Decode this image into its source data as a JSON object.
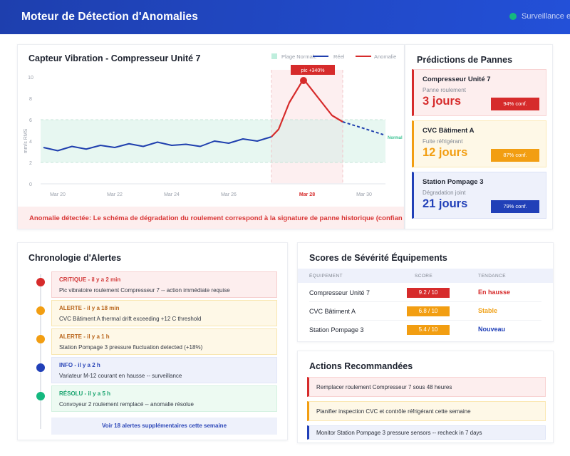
{
  "header": {
    "title": "Moteur de Détection d'Anomalies",
    "status_label": "Surveillance e",
    "status_color": "#14b87f"
  },
  "chart_card": {
    "title": "Capteur Vibration - Compresseur Unité 7",
    "legend": [
      {
        "label": "Plage Normale",
        "color": "#bfeedd",
        "kind": "box"
      },
      {
        "label": "Réel",
        "color": "#1f3fae",
        "kind": "line"
      },
      {
        "label": "Anomalie",
        "color": "#d62b2b",
        "kind": "line"
      }
    ],
    "peak_label": "pic +340%",
    "band_label": "Normal",
    "banner": "Anomalie détectée: Le schéma de dégradation du roulement correspond à la signature de panne historique (confian"
  },
  "chart_data": {
    "type": "line",
    "title": "Capteur Vibration - Compresseur Unité 7",
    "xlabel": "",
    "ylabel": "mm/s RMS",
    "ylim": [
      0,
      10
    ],
    "yticks": [
      0,
      2,
      4,
      6,
      8,
      10
    ],
    "xticks": [
      "Mar 20",
      "Mar 22",
      "Mar 24",
      "Mar 26",
      "Mar 28",
      "Mar 30"
    ],
    "highlight_xtick": "Mar 28",
    "normal_range": [
      2,
      6
    ],
    "grid": false,
    "legend_position": "top-right",
    "series": [
      {
        "name": "Réel",
        "color": "#1f3fae",
        "style": "solid",
        "values": [
          3.4,
          3.1,
          3.5,
          3.25,
          3.6,
          3.4,
          3.75,
          3.5,
          3.9,
          3.6,
          3.7,
          3.5,
          4.0,
          3.8,
          4.2,
          4.0,
          4.4
        ]
      },
      {
        "name": "Anomalie",
        "color": "#d62b2b",
        "style": "solid",
        "values": [
          4.4,
          5.1,
          7.6,
          9.8,
          8.1,
          6.4,
          5.8
        ]
      },
      {
        "name": "Prévision",
        "color": "#1f3fae",
        "style": "dashed",
        "values": [
          5.8,
          5.2,
          4.6
        ]
      }
    ],
    "annotations": [
      {
        "text": "pic +340%",
        "at_value": 9.8
      },
      {
        "text": "Normal",
        "at_value": 4.5
      }
    ]
  },
  "predictions": {
    "title": "Prédictions de Pannes",
    "items": [
      {
        "name": "Compresseur Unité 7",
        "issue": "Panne roulement",
        "days": "3 jours",
        "confidence": "94% conf.",
        "color": "#d62b2b",
        "bg": "#fdeeee",
        "border": "#f8d3d3"
      },
      {
        "name": "CVC Bâtiment A",
        "issue": "Fuite réfrigérant",
        "days": "12 jours",
        "confidence": "87% conf.",
        "color": "#f29e12",
        "bg": "#fef8e7",
        "border": "#fbe8b5"
      },
      {
        "name": "Station Pompage 3",
        "issue": "Dégradation joint",
        "days": "21 jours",
        "confidence": "79% conf.",
        "color": "#2140b8",
        "bg": "#eef1fb",
        "border": "#dbe1f6"
      }
    ]
  },
  "timeline": {
    "title": "Chronologie d'Alertes",
    "items": [
      {
        "header": "CRITIQUE - il y a 2 min",
        "message": "Pic vibratoire roulement Compresseur 7 -- action immédiate requise",
        "dot": "#d62b2b",
        "head_color": "#d23a3a",
        "bg": "#fdeeee",
        "border": "#f6cfcf"
      },
      {
        "header": "ALERTE - il y a 18 min",
        "message": "CVC Bâtiment A thermal drift exceeding +12 C threshold",
        "dot": "#f29e12",
        "head_color": "#b9651c",
        "bg": "#fef8e7",
        "border": "#f8e6b0"
      },
      {
        "header": "ALERTE - il y a 1 h",
        "message": "Station Pompage 3 pressure fluctuation detected (+18%)",
        "dot": "#f29e12",
        "head_color": "#b9651c",
        "bg": "#fef8e7",
        "border": "#f8e6b0"
      },
      {
        "header": "INFO - il y a 2 h",
        "message": "Variateur M-12 courant en hausse -- surveillance",
        "dot": "#2140b8",
        "head_color": "#2c47b8",
        "bg": "#eef1fb",
        "border": "#e1e6f7"
      },
      {
        "header": "RÉSOLU - il y a 5 h",
        "message": "Convoyeur 2 roulement remplacé -- anomalie résolue",
        "dot": "#14b87f",
        "head_color": "#1aa46f",
        "bg": "#edfaf2",
        "border": "#d4f1e1"
      }
    ],
    "more_link": "Voir 18 alertes supplémentaires cette semaine"
  },
  "severity": {
    "title": "Scores de Sévérité Équipements",
    "columns": [
      "ÉQUIPEMENT",
      "SCORE",
      "TENDANCE"
    ],
    "rows": [
      {
        "equipment": "Compresseur Unité 7",
        "score": "9.2 / 10",
        "score_color": "#d62b2b",
        "trend": "En hausse",
        "trend_color": "#d62b2b"
      },
      {
        "equipment": "CVC Bâtiment A",
        "score": "6.8 / 10",
        "score_color": "#f29e12",
        "trend": "Stable",
        "trend_color": "#f0a21a"
      },
      {
        "equipment": "Station Pompage 3",
        "score": "5.4 / 10",
        "score_color": "#f29e12",
        "trend": "Nouveau",
        "trend_color": "#2140b8"
      }
    ]
  },
  "actions": {
    "title": "Actions Recommandées",
    "items": [
      {
        "text": "Remplacer roulement Compresseur 7 sous 48 heures",
        "color": "#d62b2b",
        "bg": "#fdeeee",
        "border": "#f8d3d3"
      },
      {
        "text": "Planifier inspection CVC et contrôle réfrigérant cette semaine",
        "color": "#f29e12",
        "bg": "#fef8e7",
        "border": "#fbe8b5"
      },
      {
        "text": "Monitor Station Pompage 3 pressure sensors -- recheck in 7 days",
        "color": "#2140b8",
        "bg": "#eef1fb",
        "border": "#e1e6f7"
      }
    ]
  }
}
